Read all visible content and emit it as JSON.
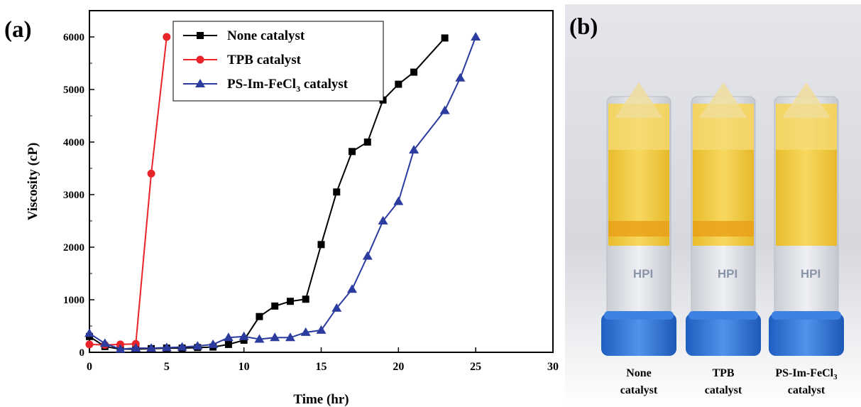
{
  "panels": {
    "a_label": "(a)",
    "b_label": "(b)"
  },
  "chart_data": {
    "type": "line",
    "xlabel": "Time (hr)",
    "ylabel": "Viscosity (cP)",
    "xlim": [
      0,
      30
    ],
    "ylim": [
      0,
      6500
    ],
    "xticks": [
      0,
      5,
      10,
      15,
      20,
      25,
      30
    ],
    "yticks": [
      0,
      1000,
      2000,
      3000,
      4000,
      5000,
      6000
    ],
    "grid": false,
    "legend_position": "top-center",
    "series": [
      {
        "name": "None catalyst",
        "color": "#000000",
        "marker": "square",
        "x": [
          0,
          1,
          2,
          3,
          4,
          5,
          6,
          7,
          8,
          9,
          10,
          11,
          12,
          13,
          14,
          15,
          16,
          17,
          18,
          19,
          20,
          21,
          23
        ],
        "y": [
          300,
          110,
          60,
          60,
          70,
          80,
          80,
          90,
          100,
          150,
          230,
          680,
          880,
          970,
          1010,
          2050,
          3050,
          3820,
          4000,
          4800,
          5100,
          5330,
          5980
        ]
      },
      {
        "name": "TPB catalyst",
        "color": "#e8232a",
        "marker": "circle",
        "x": [
          0,
          1,
          2,
          3,
          4,
          5
        ],
        "y": [
          150,
          140,
          150,
          160,
          3400,
          6000
        ]
      },
      {
        "name": "PS-Im-FeCl",
        "name_sub": "3",
        "name_suffix": " catalyst",
        "color": "#2b3b9e",
        "marker": "triangle",
        "x": [
          0,
          1,
          2,
          3,
          4,
          5,
          6,
          7,
          8,
          9,
          10,
          11,
          12,
          13,
          14,
          15,
          16,
          17,
          18,
          19,
          20,
          21,
          23,
          24,
          25
        ],
        "y": [
          360,
          170,
          60,
          80,
          80,
          90,
          100,
          120,
          150,
          280,
          300,
          250,
          280,
          280,
          380,
          420,
          840,
          1200,
          1830,
          2500,
          2870,
          3850,
          4600,
          5220,
          6000
        ]
      }
    ]
  },
  "photo": {
    "labels": [
      {
        "line1": "None",
        "line2": "catalyst"
      },
      {
        "line1": "TPB",
        "line2": "catalyst"
      },
      {
        "line1": "PS-Im-FeCl",
        "line1_sub": "3",
        "line2": "catalyst"
      }
    ],
    "vial_text": "HPI",
    "liquid_color": "#f1cb4a",
    "cap_color": "#2f74d6"
  }
}
